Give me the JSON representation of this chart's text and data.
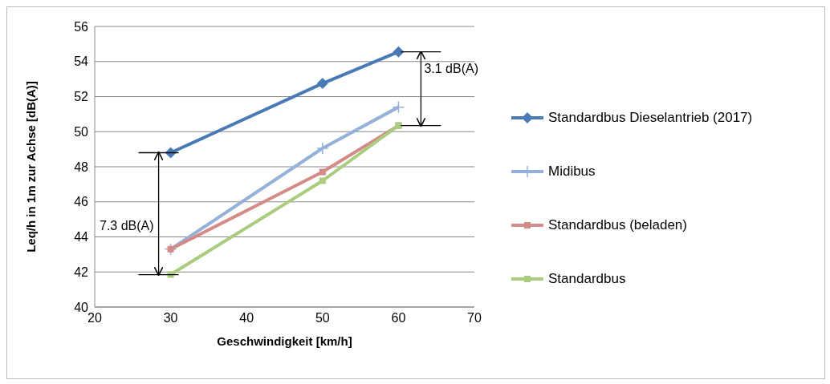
{
  "chart_data": {
    "type": "line",
    "xlabel": "Geschwindigkeit [km/h]",
    "ylabel": "Leq/h in 1m zur Achse [dB(A)]",
    "x": [
      30,
      50,
      60
    ],
    "series": [
      {
        "name": "Standardbus Dieselantrieb (2017)",
        "color": "#4a7ab5",
        "marker": "diamond",
        "values": [
          48.8,
          52.75,
          54.55
        ]
      },
      {
        "name": "Midibus",
        "color": "#95b0d9",
        "marker": "cross",
        "values": [
          43.3,
          49.05,
          51.4
        ]
      },
      {
        "name": "Standardbus (beladen)",
        "color": "#d48a87",
        "marker": "square",
        "values": [
          43.3,
          47.7,
          50.35
        ]
      },
      {
        "name": "Standardbus",
        "color": "#a9cc7e",
        "marker": "square",
        "values": [
          41.85,
          47.2,
          50.35
        ]
      }
    ],
    "xlim": [
      20,
      70
    ],
    "xticks": [
      20,
      30,
      40,
      50,
      60,
      70
    ],
    "ylim": [
      40,
      56
    ],
    "yticks": [
      40,
      42,
      44,
      46,
      48,
      50,
      52,
      54,
      56
    ],
    "grid": "y",
    "legend": "right",
    "line_style": "solid",
    "annotations": [
      "7.3 dB(A)",
      {
        "text": "3.1 dB(A)",
        "x": 60,
        "y": 54.55
      }
    ]
  }
}
